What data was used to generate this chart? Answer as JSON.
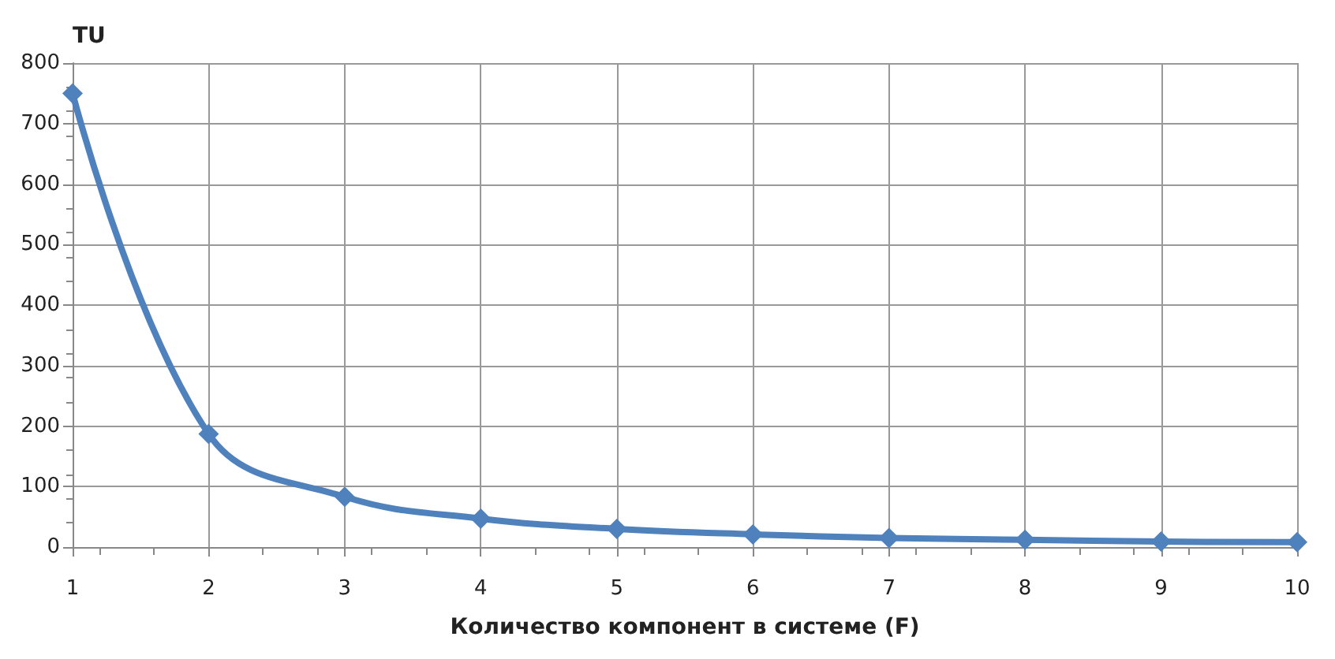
{
  "chart_data": {
    "type": "line",
    "ylabel": "TU",
    "xlabel": "Количество компонент в системе (F)",
    "x": [
      1,
      2,
      3,
      4,
      5,
      6,
      7,
      8,
      9,
      10
    ],
    "series": [
      {
        "color": "#4f81bd",
        "values": [
          750,
          187,
          83,
          47,
          30,
          21,
          15,
          12,
          9,
          8
        ]
      }
    ],
    "xlim": [
      1,
      10
    ],
    "xticks": [
      1,
      2,
      3,
      4,
      5,
      6,
      7,
      8,
      9,
      10
    ],
    "ylim": [
      0,
      800
    ],
    "yticks": [
      0,
      100,
      200,
      300,
      400,
      500,
      600,
      700,
      800
    ],
    "grid": true,
    "marker": "diamond",
    "line_style": "solid"
  }
}
